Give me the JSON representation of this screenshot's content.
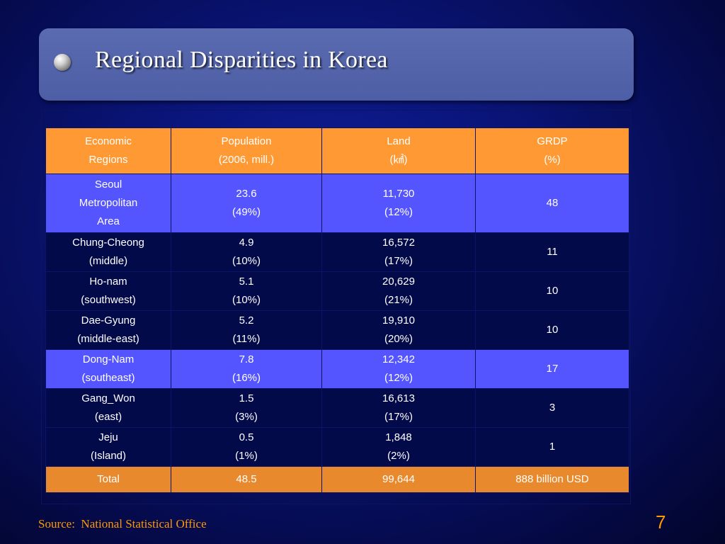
{
  "slide": {
    "title": "Regional Disparities in Korea",
    "source": "Source:  National Statistical Office",
    "page_number": "7"
  },
  "table": {
    "headers": [
      [
        "Economic",
        "Regions"
      ],
      [
        "Population",
        "(2006, mill.)"
      ],
      [
        "Land",
        "(㎢)"
      ],
      [
        "GRDP",
        "(%)"
      ]
    ],
    "rows": [
      {
        "region": [
          "Seoul",
          "Metropolitan",
          "Area"
        ],
        "population": [
          "23.6",
          "(49%)"
        ],
        "land": [
          "11,730",
          "(12%)"
        ],
        "grdp": "48"
      },
      {
        "region": [
          "Chung-Cheong",
          "(middle)"
        ],
        "population": [
          "4.9",
          "(10%)"
        ],
        "land": [
          "16,572",
          "(17%)"
        ],
        "grdp": "11"
      },
      {
        "region": [
          "Ho-nam",
          "(southwest)"
        ],
        "population": [
          "5.1",
          "(10%)"
        ],
        "land": [
          "20,629",
          "(21%)"
        ],
        "grdp": "10"
      },
      {
        "region": [
          "Dae-Gyung",
          "(middle-east)"
        ],
        "population": [
          "5.2",
          "(11%)"
        ],
        "land": [
          "19,910",
          "(20%)"
        ],
        "grdp": "10"
      },
      {
        "region": [
          "Dong-Nam",
          "(southeast)"
        ],
        "population": [
          "7.8",
          "(16%)"
        ],
        "land": [
          "12,342",
          "(12%)"
        ],
        "grdp": "17"
      },
      {
        "region": [
          "Gang_Won",
          "(east)"
        ],
        "population": [
          "1.5",
          "(3%)"
        ],
        "land": [
          "16,613",
          "(17%)"
        ],
        "grdp": "3"
      },
      {
        "region": [
          "Jeju",
          "(Island)"
        ],
        "population": [
          "0.5",
          "(1%)"
        ],
        "land": [
          "1,848",
          "(2%)"
        ],
        "grdp": "1"
      }
    ],
    "total": {
      "label": "Total",
      "population": "48.5",
      "land": "99,644",
      "grdp": "888 billion USD"
    }
  },
  "colors": {
    "background": "#0a157a",
    "title_panel": "#5566aa",
    "header_row": "#ff9933",
    "highlight_row": "#5555ff",
    "dark_row": "#030a4a",
    "total_row": "#e8892d",
    "source_text": "#ff9900"
  },
  "icons": {
    "title_bullet": "sphere-bullet-icon"
  }
}
